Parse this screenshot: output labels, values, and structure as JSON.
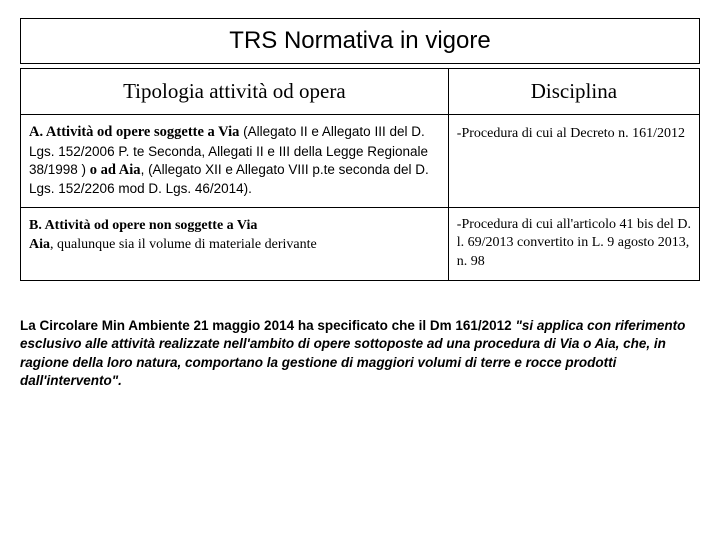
{
  "title": "TRS Normativa in vigore",
  "table": {
    "headers": {
      "left": "Tipologia attività od opera",
      "right": "Disciplina"
    },
    "rowA": {
      "lead": "A. Attività od opere soggette a Via",
      "rest": " (Allegato II e Allegato III del D. Lgs. 152/2006 P. te Seconda, Allegati II e III della Legge Regionale 38/1998 ) ",
      "lead2": "o ad Aia",
      "rest2": ", (Allegato XII e Allegato VIII p.te seconda del D. Lgs. 152/2206 mod D. Lgs. 46/2014).",
      "disc_dash": "-",
      "disc_text": "Procedura di cui al Decreto n. 161/2012"
    },
    "rowB": {
      "lead": "B.   Attività od opere non soggette a Via",
      "line2_lead": "Aia",
      "line2_rest": ", qualunque sia il volume di materiale derivante",
      "disc_dash": "-",
      "disc_text": "Procedura di cui all'articolo 41 bis del  D. l. 69/2013 convertito in L. 9 agosto 2013, n. 98"
    }
  },
  "footer": {
    "pre": "La Circolare Min Ambiente 21 maggio 2014 ha specificato che il Dm 161/2012 ",
    "quote": "\"si applica con riferimento esclusivo alle attività realizzate nell'ambito di opere sottoposte ad una procedura di Via o Aia, che, in ragione della loro natura, comportano la gestione di maggiori volumi di terre e rocce prodotti dall'intervento\"."
  }
}
